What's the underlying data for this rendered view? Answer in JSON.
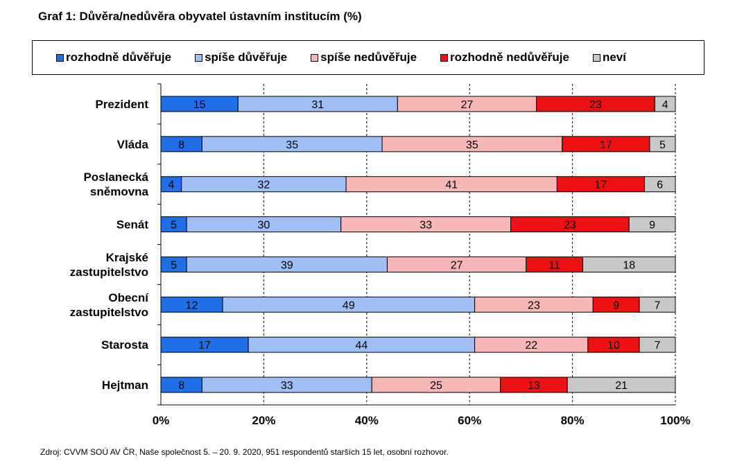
{
  "chart_data": {
    "type": "bar",
    "orientation": "horizontal",
    "stacked": true,
    "title": "Graf 1: Důvěra/nedůvěra obyvatel ústavním institucím (%)",
    "categories": [
      [
        "Prezident"
      ],
      [
        "Vláda"
      ],
      [
        "Poslanecká",
        "sněmovna"
      ],
      [
        "Senát"
      ],
      [
        "Krajské",
        "zastupitelstvo"
      ],
      [
        "Obecní",
        "zastupitelstvo"
      ],
      [
        "Starosta"
      ],
      [
        "Hejtman"
      ]
    ],
    "series": [
      {
        "name": "rozhodně důvěřuje",
        "color": "#1f6fe6",
        "values": [
          15,
          8,
          4,
          5,
          5,
          12,
          17,
          8
        ]
      },
      {
        "name": "spíše důvěřuje",
        "color": "#9fbef4",
        "values": [
          31,
          35,
          32,
          30,
          39,
          49,
          44,
          33
        ]
      },
      {
        "name": "spíše nedůvěřuje",
        "color": "#f8b7b7",
        "values": [
          27,
          35,
          41,
          33,
          27,
          23,
          22,
          25
        ]
      },
      {
        "name": "rozhodně nedůvěřuje",
        "color": "#ee1111",
        "values": [
          23,
          17,
          17,
          23,
          11,
          9,
          10,
          13
        ]
      },
      {
        "name": "neví",
        "color": "#c8c8c8",
        "values": [
          4,
          5,
          6,
          9,
          18,
          7,
          7,
          21
        ]
      }
    ],
    "xlim": [
      0,
      100
    ],
    "xticks": [
      "0%",
      "20%",
      "40%",
      "60%",
      "80%",
      "100%"
    ],
    "grid": true,
    "legend_position": "top"
  },
  "source": "Zdroj: CVVM SOÚ AV ČR, Naše společnost 5. – 20. 9. 2020, 951 respondentů starších 15 let, osobní rozhovor."
}
